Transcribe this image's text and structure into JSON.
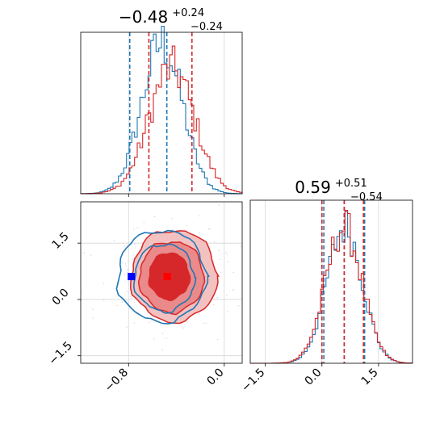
{
  "chart_data": {
    "type": "corner",
    "colors": {
      "blue": "#1f77b4",
      "red": "#d62728",
      "marker_blue": "#0000ff",
      "marker_red": "#ff0000"
    },
    "top_hist": {
      "title": {
        "main": "−0.48",
        "sup": "+0.24",
        "sub": "−0.24"
      },
      "xlim": [
        -1.2,
        0.15
      ],
      "bins": 60,
      "series": [
        {
          "color": "#1f77b4",
          "mean": -0.52,
          "sd": 0.17,
          "peak": 0.98,
          "quantiles": [
            -0.79,
            -0.48
          ]
        },
        {
          "color": "#d62728",
          "mean": -0.44,
          "sd": 0.19,
          "peak": 0.82,
          "quantiles": [
            -0.63,
            -0.27
          ]
        }
      ],
      "grid_x": [
        -0.8,
        0.0
      ]
    },
    "right_hist": {
      "title": {
        "main": "0.59",
        "sup": "+0.51",
        "sub": "−0.54"
      },
      "xlim": [
        -1.9,
        2.4
      ],
      "bins": 60,
      "series": [
        {
          "color": "#1f77b4",
          "mean": 0.6,
          "sd": 0.47,
          "peak": 0.88,
          "quantiles": [
            0.05,
            0.59,
            1.13
          ]
        },
        {
          "color": "#d62728",
          "mean": 0.58,
          "sd": 0.48,
          "peak": 0.88,
          "quantiles": [
            0.0,
            0.59,
            1.1
          ]
        }
      ],
      "xticks": [
        "−1.5",
        "0.0",
        "1.5"
      ],
      "xtick_values": [
        -1.5,
        0.0,
        1.5
      ]
    },
    "joint": {
      "xlim": [
        -1.2,
        0.15
      ],
      "ylim": [
        -1.7,
        2.6
      ],
      "xticks": [
        "−0.8",
        "0.0"
      ],
      "xtick_values": [
        -0.8,
        0.0
      ],
      "yticks": [
        "1.5",
        "0.0",
        "−1.5"
      ],
      "ytick_values": [
        1.5,
        0.0,
        -1.5
      ],
      "red_levels": [
        {
          "fill": "#f4c1c1",
          "cx": -0.42,
          "cy": 0.62,
          "rx": 0.36,
          "ry": 1.22
        },
        {
          "fill": "#ea8a8b",
          "cx": -0.44,
          "cy": 0.6,
          "rx": 0.27,
          "ry": 0.95
        },
        {
          "fill": "#d6282a",
          "cx": -0.46,
          "cy": 0.62,
          "rx": 0.17,
          "ry": 0.62
        }
      ],
      "blue_levels": [
        {
          "cx": -0.52,
          "cy": 0.62,
          "rx": 0.37,
          "ry": 1.22
        },
        {
          "cx": -0.5,
          "cy": 0.58,
          "rx": 0.25,
          "ry": 0.9
        }
      ],
      "markers": [
        {
          "x": -0.78,
          "y": 0.62,
          "color": "#0000ff"
        },
        {
          "x": -0.48,
          "y": 0.62,
          "color": "#ff0000"
        }
      ],
      "grid_x": [
        -0.8,
        0.0
      ],
      "grid_y": [
        1.5,
        0.0,
        -1.5
      ]
    }
  }
}
